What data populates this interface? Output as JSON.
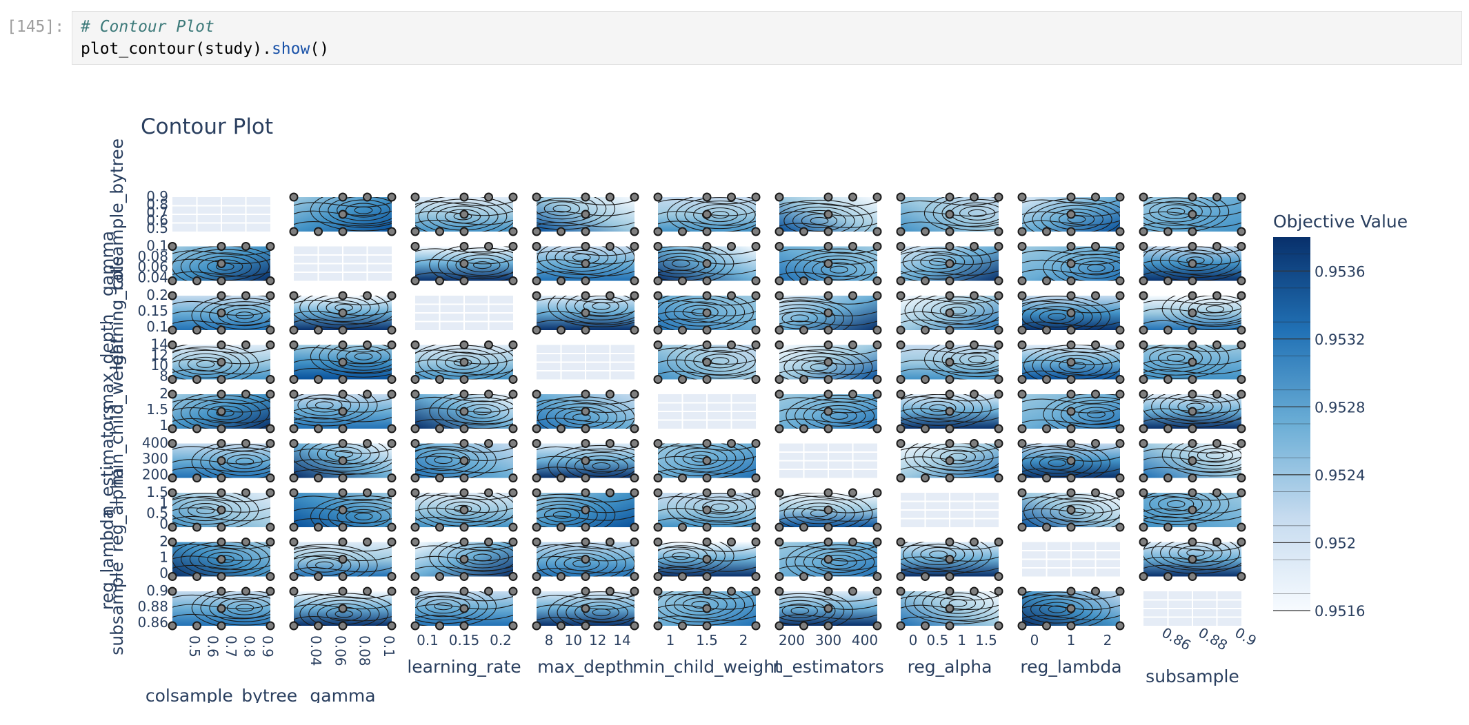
{
  "notebook": {
    "prompt": "[145]:",
    "code_lines": [
      [
        {
          "t": "# Contour Plot",
          "k": "comment"
        }
      ],
      [
        {
          "t": "plot_contour(study).",
          "k": "plain"
        },
        {
          "t": "show",
          "k": "method"
        },
        {
          "t": "()",
          "k": "plain"
        }
      ]
    ]
  },
  "chart_data": {
    "type": "contour",
    "title": "Contour Plot",
    "params": [
      {
        "name": "colsample_bytree",
        "ticks": [
          "0.5",
          "0.6",
          "0.7",
          "0.8",
          "0.9"
        ],
        "y_ticks": [
          "0.9",
          "0.8",
          "0.7",
          "0.6",
          "0.5"
        ]
      },
      {
        "name": "gamma",
        "ticks": [
          "0.04",
          "0.06",
          "0.08",
          "0.1"
        ],
        "y_ticks": [
          "0.1",
          "0.08",
          "0.06",
          "0.04"
        ]
      },
      {
        "name": "learning_rate",
        "ticks": [
          "0.1",
          "0.15",
          "0.2"
        ],
        "y_ticks": [
          "0.2",
          "0.15",
          "0.1"
        ]
      },
      {
        "name": "max_depth",
        "ticks": [
          "8",
          "10",
          "12",
          "14"
        ],
        "y_ticks": [
          "14",
          "12",
          "10",
          "8"
        ]
      },
      {
        "name": "min_child_weight",
        "ticks": [
          "1",
          "1.5",
          "2"
        ],
        "y_ticks": [
          "2",
          "1.5",
          "1"
        ]
      },
      {
        "name": "n_estimators",
        "ticks": [
          "200",
          "300",
          "400"
        ],
        "y_ticks": [
          "400",
          "300",
          "200"
        ]
      },
      {
        "name": "reg_alpha",
        "ticks": [
          "0",
          "0.5",
          "1",
          "1.5"
        ],
        "y_ticks": [
          "1.5",
          "1",
          "0.5",
          "0"
        ]
      },
      {
        "name": "reg_lambda",
        "ticks": [
          "0",
          "1",
          "2"
        ],
        "y_ticks": [
          "2",
          "1",
          "0"
        ]
      },
      {
        "name": "subsample",
        "ticks": [
          "0.86",
          "0.88",
          "0.9"
        ],
        "y_ticks": [
          "0.9",
          "0.88",
          "0.86"
        ]
      }
    ],
    "colorbar": {
      "title": "Objective Value",
      "ticks": [
        "0.9536",
        "0.9532",
        "0.9528",
        "0.9524",
        "0.952",
        "0.9516"
      ],
      "range": [
        0.9516,
        0.9538
      ],
      "colorscale": [
        "#f7fbff",
        "#deebf7",
        "#c6dbef",
        "#9ecae1",
        "#6baed6",
        "#4292c6",
        "#2171b5",
        "#08519c",
        "#08306b"
      ]
    }
  }
}
